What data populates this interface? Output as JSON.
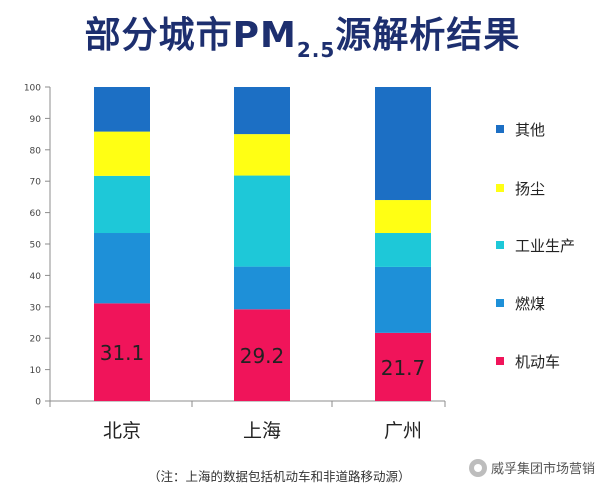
{
  "chart_data": {
    "type": "bar",
    "stacked": true,
    "title_main": "部分城市PM",
    "title_sub": "2.5",
    "title_tail": "源解析结果",
    "categories": [
      "北京",
      "上海",
      "广州"
    ],
    "series": [
      {
        "name": "机动车",
        "color": "#f0145a",
        "values": [
          31.1,
          29.2,
          21.7
        ]
      },
      {
        "name": "燃煤",
        "color": "#1e90d8",
        "values": [
          22.4,
          13.6,
          21.0
        ]
      },
      {
        "name": "工业生产",
        "color": "#1ec8d8",
        "values": [
          18.2,
          29.0,
          10.8
        ]
      },
      {
        "name": "扬尘",
        "color": "#ffff14",
        "values": [
          14.1,
          13.2,
          10.5
        ]
      },
      {
        "name": "其他",
        "color": "#1c6fc4",
        "values": [
          14.2,
          15.0,
          36.0
        ]
      }
    ],
    "data_labels": [
      "31.1",
      "29.2",
      "21.7"
    ],
    "ylim": [
      0,
      100
    ],
    "yticks": [
      0,
      10,
      20,
      30,
      40,
      50,
      60,
      70,
      80,
      90,
      100
    ],
    "legend_order": [
      "其他",
      "扬尘",
      "工业生产",
      "燃煤",
      "机动车"
    ],
    "legend_position": "right"
  },
  "footnote": "（注：上海的数据包括机动车和非道路移动源）",
  "watermark": "威孚集团市场营销"
}
